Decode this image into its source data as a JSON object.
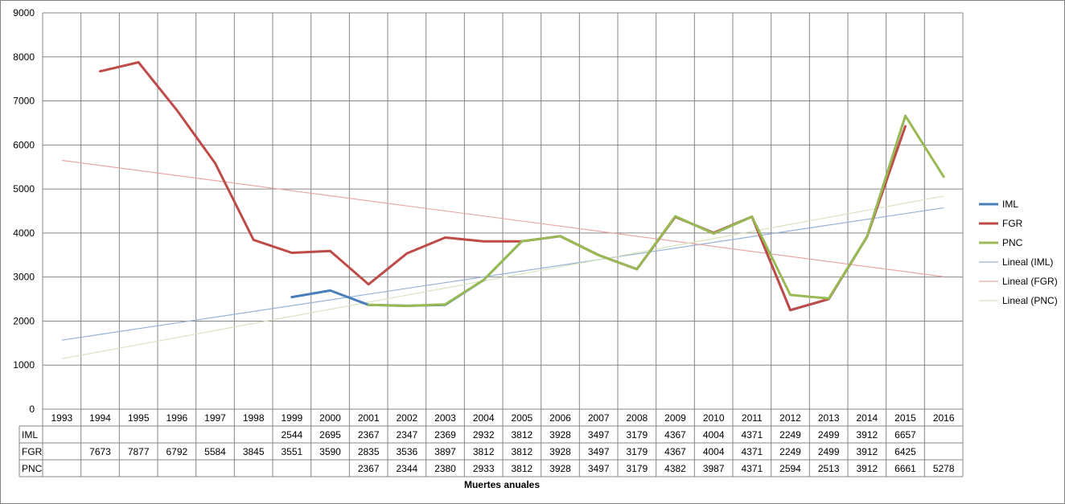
{
  "chart_data": {
    "type": "line",
    "xlabel": "Muertes anuales",
    "ylim": [
      0,
      9000
    ],
    "yticks": [
      0,
      1000,
      2000,
      3000,
      4000,
      5000,
      6000,
      7000,
      8000,
      9000
    ],
    "grid": true,
    "legend_position": "right",
    "categories": [
      "1993",
      "1994",
      "1995",
      "1996",
      "1997",
      "1998",
      "1999",
      "2000",
      "2001",
      "2002",
      "2003",
      "2004",
      "2005",
      "2006",
      "2007",
      "2008",
      "2009",
      "2010",
      "2011",
      "2012",
      "2013",
      "2014",
      "2015",
      "2016"
    ],
    "series": [
      {
        "name": "IML",
        "color": "#4a7ebb",
        "values": [
          null,
          null,
          null,
          null,
          null,
          null,
          2544,
          2695,
          2367,
          2347,
          2369,
          2932,
          3812,
          3928,
          3497,
          3179,
          4367,
          4004,
          4371,
          2249,
          2499,
          3912,
          6657,
          null
        ]
      },
      {
        "name": "FGR",
        "color": "#be4b48",
        "values": [
          null,
          7673,
          7877,
          6792,
          5584,
          3845,
          3551,
          3590,
          2835,
          3536,
          3897,
          3812,
          3812,
          3928,
          3497,
          3179,
          4367,
          4004,
          4371,
          2249,
          2499,
          3912,
          6425,
          null
        ]
      },
      {
        "name": "PNC",
        "color": "#98b954",
        "values": [
          null,
          null,
          null,
          null,
          null,
          null,
          null,
          null,
          2367,
          2344,
          2380,
          2933,
          3812,
          3928,
          3497,
          3179,
          4382,
          3987,
          4371,
          2594,
          2513,
          3912,
          6661,
          5278
        ]
      }
    ],
    "trendlines": [
      {
        "name": "Lineal (IML)",
        "color": "#95b3d7",
        "of": "IML"
      },
      {
        "name": "Lineal (FGR)",
        "color": "#e6a9a8",
        "of": "FGR"
      },
      {
        "name": "Lineal (PNC)",
        "color": "#d7e4bd",
        "of": "PNC"
      }
    ]
  }
}
